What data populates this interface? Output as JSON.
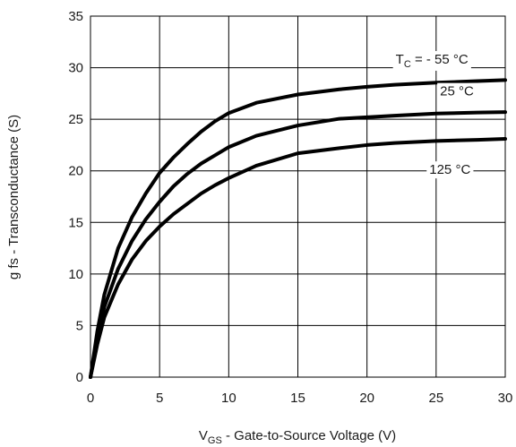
{
  "chart_data": {
    "type": "line",
    "xlabel": {
      "main": "V",
      "sub": "GS",
      "rest": " - Gate-to-Source Voltage (V)"
    },
    "ylabel": "g fs - Transconductance (S)",
    "xlim": [
      0,
      30
    ],
    "ylim": [
      0,
      35
    ],
    "xticks": [
      "0",
      "5",
      "10",
      "15",
      "20",
      "25",
      "30"
    ],
    "yticks": [
      "0",
      "5",
      "10",
      "15",
      "20",
      "25",
      "30",
      "35"
    ],
    "grid": true,
    "series": [
      {
        "label": {
          "main": "T",
          "sub": "C",
          "rest": " = - 55 °C"
        },
        "x": [
          0,
          0.5,
          1,
          2,
          3,
          4,
          5,
          6,
          7,
          8,
          9,
          10,
          12,
          15,
          18,
          20,
          22,
          25,
          28,
          30
        ],
        "y": [
          0,
          4.5,
          8,
          12.5,
          15.5,
          17.8,
          19.8,
          21.3,
          22.6,
          23.8,
          24.8,
          25.6,
          26.6,
          27.4,
          27.9,
          28.15,
          28.35,
          28.55,
          28.7,
          28.8
        ]
      },
      {
        "label": {
          "main": "25 °C",
          "sub": "",
          "rest": ""
        },
        "x": [
          0,
          0.5,
          1,
          2,
          3,
          4,
          5,
          6,
          7,
          8,
          9,
          10,
          12,
          15,
          18,
          20,
          22,
          25,
          28,
          30
        ],
        "y": [
          0,
          3.8,
          6.8,
          10.5,
          13.2,
          15.3,
          17,
          18.5,
          19.7,
          20.7,
          21.5,
          22.3,
          23.4,
          24.4,
          25.05,
          25.2,
          25.35,
          25.55,
          25.65,
          25.7
        ]
      },
      {
        "label": {
          "main": "125 °C",
          "sub": "",
          "rest": ""
        },
        "x": [
          0,
          0.5,
          1,
          2,
          3,
          4,
          5,
          6,
          7,
          8,
          9,
          10,
          12,
          15,
          18,
          20,
          22,
          25,
          28,
          30
        ],
        "y": [
          0,
          3.2,
          5.8,
          9,
          11.4,
          13.2,
          14.6,
          15.8,
          16.8,
          17.8,
          18.6,
          19.3,
          20.5,
          21.7,
          22.2,
          22.5,
          22.7,
          22.9,
          23.0,
          23.1
        ]
      }
    ]
  }
}
